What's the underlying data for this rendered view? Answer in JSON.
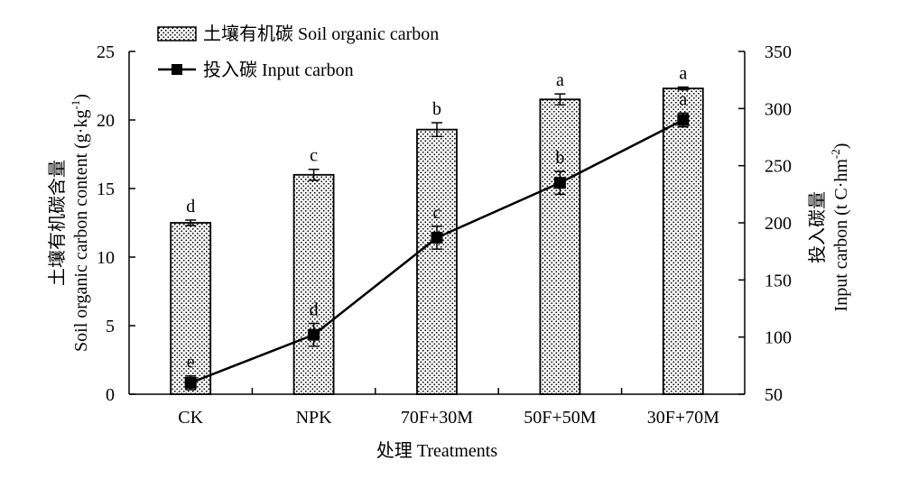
{
  "chart_data": {
    "type": "bar",
    "categories": [
      "CK",
      "NPK",
      "70F+30M",
      "50F+50M",
      "30F+70M"
    ],
    "xlabel": "处理 Treatments",
    "ylabel_left_cn": "土壤有机碳含量",
    "ylabel_left_en": "Soil organic carbon content (g·kg",
    "ylabel_left_sup": "-1",
    "ylabel_left_tail": ")",
    "ylabel_right_cn": "投入碳量",
    "ylabel_right_en": "Input carbon (t C·hm",
    "ylabel_right_sup": "-2",
    "ylabel_right_tail": ")",
    "yleft_lim": [
      0,
      25
    ],
    "yleft_ticks": [
      "0",
      "5",
      "10",
      "15",
      "20",
      "25"
    ],
    "yright_lim": [
      50,
      350
    ],
    "yright_ticks": [
      "50",
      "100",
      "150",
      "200",
      "250",
      "300",
      "350"
    ],
    "grid": false,
    "legend_position": "top-left",
    "legend": [
      "土壤有机碳 Soil organic carbon",
      "投入碳 Input carbon"
    ],
    "series": [
      {
        "name": "土壤有机碳 Soil organic carbon",
        "kind": "bar",
        "axis": "left",
        "values": [
          12.5,
          16.0,
          19.3,
          21.5,
          22.3
        ],
        "errors": [
          0.2,
          0.4,
          0.5,
          0.4,
          0.1
        ],
        "letters": [
          "d",
          "c",
          "b",
          "a",
          "a"
        ]
      },
      {
        "name": "投入碳 Input carbon",
        "kind": "line",
        "axis": "right",
        "values": [
          60,
          102,
          187,
          235,
          290
        ],
        "errors": [
          6,
          10,
          10,
          10,
          6
        ],
        "letters": [
          "e",
          "d",
          "c",
          "b",
          "a"
        ]
      }
    ]
  }
}
